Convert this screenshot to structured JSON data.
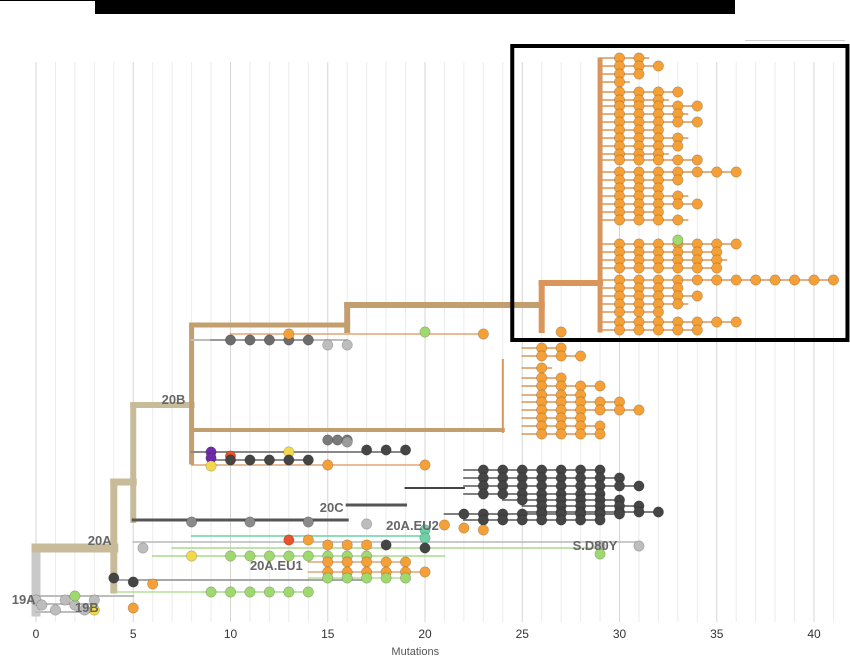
{
  "chart_data": {
    "type": "scatter",
    "subtype": "phylogenetic-tree",
    "title": "",
    "xlabel": "Mutations",
    "ylabel": "",
    "xlim": [
      0,
      41
    ],
    "x_ticks": [
      0,
      5,
      10,
      15,
      20,
      25,
      30,
      35,
      40
    ],
    "grid": "vertical",
    "clade_labels": [
      {
        "label": "19A",
        "x": 0.5
      },
      {
        "label": "19B",
        "x": 2
      },
      {
        "label": "20A",
        "x": 4
      },
      {
        "label": "20B",
        "x": 8
      },
      {
        "label": "20C",
        "x": 15
      },
      {
        "label": "20A.EU2",
        "x": 18
      },
      {
        "label": "20A.EU1",
        "x": 11
      },
      {
        "label": "S.D80Y",
        "x": 28
      }
    ],
    "highlight_box": {
      "x_range": [
        25,
        41
      ]
    },
    "colors": {
      "root": "#c9c9c9",
      "clade_20A": "#c8bb9a",
      "clade_20B": "#c39e6f",
      "highlighted_lineage": "#d9955a",
      "tip_orange": "#f5a036",
      "tip_dark": "#454545",
      "tip_gray": "#bdbdbd",
      "tip_green": "#9fd86e",
      "tip_yellow": "#f2d84b",
      "tip_red": "#e8532b",
      "tip_purple": "#6f2aa8",
      "tip_teal": "#6fd0a8"
    }
  }
}
